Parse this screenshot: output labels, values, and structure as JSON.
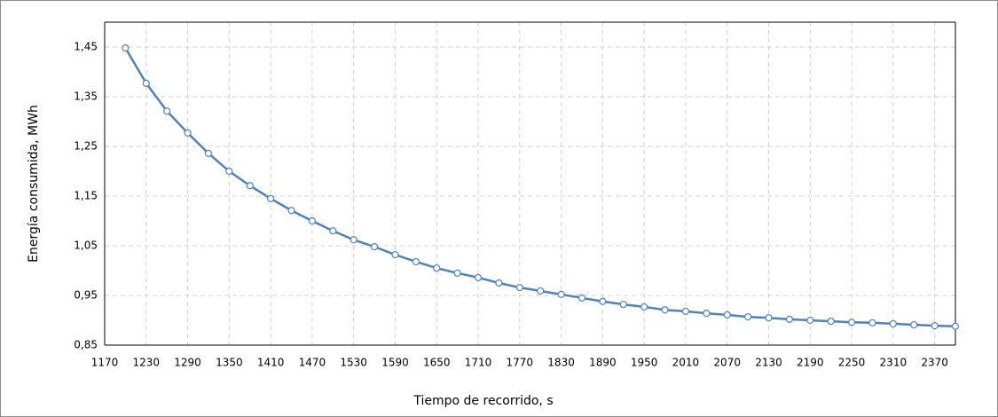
{
  "chart_data": {
    "type": "line",
    "x_label": "Tiempo de recorrido, s",
    "y_label": "Energía consumida, MWh",
    "x": [
      1200,
      1230,
      1260,
      1290,
      1320,
      1350,
      1380,
      1410,
      1440,
      1470,
      1500,
      1530,
      1560,
      1590,
      1620,
      1650,
      1680,
      1710,
      1740,
      1770,
      1800,
      1830,
      1860,
      1890,
      1920,
      1950,
      1980,
      2010,
      2040,
      2070,
      2100,
      2130,
      2160,
      2190,
      2220,
      2250,
      2280,
      2310,
      2340,
      2370,
      2400
    ],
    "series": [
      {
        "name": "Energía consumida",
        "color": "#4f81bd",
        "values": [
          1.448,
          1.377,
          1.321,
          1.277,
          1.236,
          1.2,
          1.171,
          1.145,
          1.121,
          1.1,
          1.08,
          1.062,
          1.048,
          1.032,
          1.018,
          1.005,
          0.995,
          0.986,
          0.975,
          0.966,
          0.959,
          0.952,
          0.945,
          0.938,
          0.932,
          0.927,
          0.921,
          0.918,
          0.914,
          0.911,
          0.907,
          0.905,
          0.902,
          0.9,
          0.898,
          0.896,
          0.895,
          0.893,
          0.891,
          0.889,
          0.888
        ]
      }
    ],
    "xlim": [
      1170,
      2400
    ],
    "xticks": [
      1170,
      1230,
      1290,
      1350,
      1410,
      1470,
      1530,
      1590,
      1650,
      1710,
      1770,
      1830,
      1890,
      1950,
      2010,
      2070,
      2130,
      2190,
      2250,
      2310,
      2370
    ],
    "ylim": [
      0.85,
      1.5
    ],
    "yticks": [
      {
        "value": 0.85,
        "label": "0,85"
      },
      {
        "value": 0.95,
        "label": "0,95"
      },
      {
        "value": 1.05,
        "label": "1,05"
      },
      {
        "value": 1.15,
        "label": "1,15"
      },
      {
        "value": 1.25,
        "label": "1,25"
      },
      {
        "value": 1.35,
        "label": "1,35"
      },
      {
        "value": 1.45,
        "label": "1,45"
      }
    ],
    "grid": true
  }
}
